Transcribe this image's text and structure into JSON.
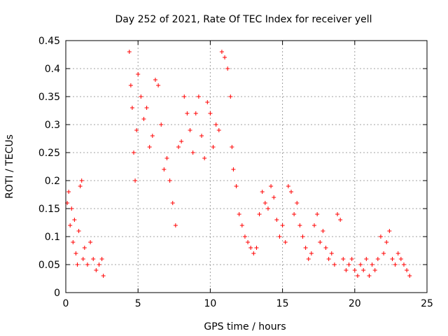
{
  "chart_data": {
    "type": "scatter",
    "title": "Day 252 of 2021, Rate Of TEC Index for receiver yell",
    "xlabel": "GPS time / hours",
    "ylabel": "ROTI / TECUs",
    "xlim": [
      0,
      25
    ],
    "ylim": [
      0,
      0.45
    ],
    "xticks": [
      "0",
      "5",
      "10",
      "15",
      "20",
      "25"
    ],
    "yticks": [
      "0",
      "0.05",
      "0.1",
      "0.15",
      "0.2",
      "0.25",
      "0.3",
      "0.35",
      "0.4",
      "0.45"
    ],
    "grid": true,
    "marker": "plus",
    "color": "#ff0000",
    "series": [
      {
        "x": [
          0.1,
          0.2,
          0.3,
          0.4,
          0.5,
          0.6,
          0.7,
          0.8,
          0.9,
          1.0,
          1.1,
          1.2,
          1.3,
          1.5,
          1.7,
          1.9,
          2.1,
          2.3,
          2.5,
          2.6,
          4.4,
          4.5,
          4.6,
          4.7,
          4.8,
          4.9,
          5.0,
          5.2,
          5.4,
          5.6,
          5.8,
          6.0,
          6.2,
          6.4,
          6.6,
          6.8,
          7.0,
          7.2,
          7.4,
          7.6,
          7.8,
          8.0,
          8.2,
          8.4,
          8.6,
          8.8,
          9.0,
          9.2,
          9.4,
          9.6,
          9.8,
          10.0,
          10.2,
          10.4,
          10.6,
          10.8,
          11.0,
          11.2,
          11.4,
          11.5,
          11.6,
          11.8,
          12.0,
          12.2,
          12.4,
          12.6,
          12.8,
          13.0,
          13.2,
          13.4,
          13.6,
          13.8,
          14.0,
          14.2,
          14.4,
          14.6,
          14.8,
          15.0,
          15.2,
          15.4,
          15.6,
          15.8,
          16.0,
          16.2,
          16.4,
          16.6,
          16.8,
          17.0,
          17.2,
          17.4,
          17.6,
          17.8,
          18.0,
          18.2,
          18.4,
          18.6,
          18.8,
          19.0,
          19.2,
          19.4,
          19.6,
          19.8,
          20.0,
          20.2,
          20.4,
          20.6,
          20.8,
          21.0,
          21.2,
          21.4,
          21.6,
          21.8,
          22.0,
          22.2,
          22.4,
          22.6,
          22.8,
          23.0,
          23.2,
          23.4,
          23.6,
          23.8
        ],
        "y": [
          0.16,
          0.18,
          0.12,
          0.15,
          0.09,
          0.13,
          0.07,
          0.05,
          0.11,
          0.19,
          0.2,
          0.06,
          0.08,
          0.05,
          0.09,
          0.06,
          0.04,
          0.05,
          0.06,
          0.03,
          0.43,
          0.37,
          0.33,
          0.25,
          0.2,
          0.29,
          0.39,
          0.35,
          0.31,
          0.33,
          0.26,
          0.28,
          0.38,
          0.37,
          0.3,
          0.22,
          0.24,
          0.2,
          0.16,
          0.12,
          0.26,
          0.27,
          0.35,
          0.32,
          0.29,
          0.25,
          0.32,
          0.35,
          0.28,
          0.24,
          0.34,
          0.32,
          0.26,
          0.3,
          0.29,
          0.43,
          0.42,
          0.4,
          0.35,
          0.26,
          0.22,
          0.19,
          0.14,
          0.12,
          0.1,
          0.09,
          0.08,
          0.07,
          0.08,
          0.14,
          0.18,
          0.16,
          0.15,
          0.19,
          0.17,
          0.13,
          0.1,
          0.12,
          0.09,
          0.19,
          0.18,
          0.14,
          0.16,
          0.12,
          0.1,
          0.08,
          0.06,
          0.07,
          0.12,
          0.14,
          0.09,
          0.11,
          0.08,
          0.06,
          0.07,
          0.05,
          0.14,
          0.13,
          0.06,
          0.04,
          0.05,
          0.06,
          0.04,
          0.03,
          0.05,
          0.04,
          0.06,
          0.03,
          0.05,
          0.04,
          0.06,
          0.1,
          0.07,
          0.09,
          0.11,
          0.06,
          0.05,
          0.07,
          0.06,
          0.05,
          0.04,
          0.03
        ]
      }
    ]
  }
}
